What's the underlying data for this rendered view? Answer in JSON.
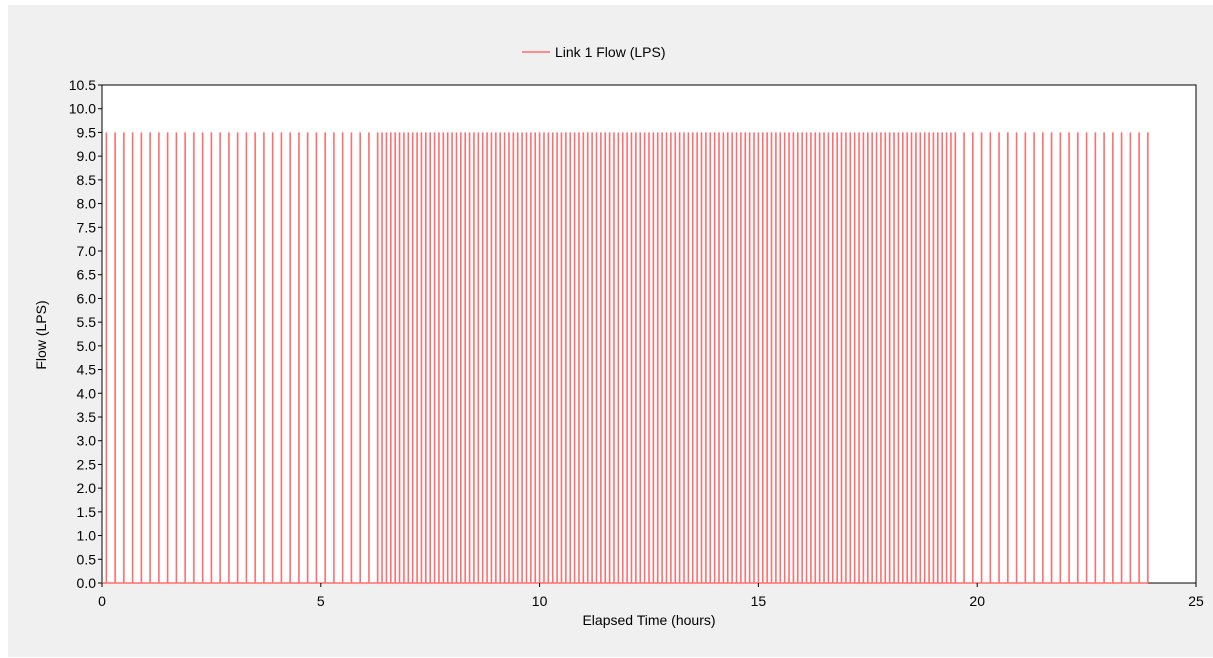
{
  "chart_data": {
    "type": "line",
    "title": "",
    "xlabel": "Elapsed Time (hours)",
    "ylabel": "Flow (LPS)",
    "xlim": [
      0,
      25
    ],
    "ylim": [
      0,
      10.5
    ],
    "x_ticks": [
      "0",
      "5",
      "10",
      "15",
      "20",
      "25"
    ],
    "y_ticks": [
      "0.0",
      "0.5",
      "1.0",
      "1.5",
      "2.0",
      "2.5",
      "3.0",
      "3.5",
      "4.0",
      "4.5",
      "5.0",
      "5.5",
      "6.0",
      "6.5",
      "7.0",
      "7.5",
      "8.0",
      "8.5",
      "9.0",
      "9.5",
      "10.0",
      "10.5"
    ],
    "grid": false,
    "legend_position": "top-center",
    "series": [
      {
        "name": "Link 1 Flow (LPS)",
        "color": "#ff6e6e",
        "pulse_value": 9.5,
        "baseline_value": 0,
        "pulses": [
          {
            "start": 0.1,
            "end": 6.3,
            "spacing": 0.2
          },
          {
            "start": 6.3,
            "end": 19.5,
            "spacing": 0.1
          },
          {
            "start": 19.5,
            "end": 23.9,
            "spacing": 0.2
          }
        ]
      }
    ]
  }
}
